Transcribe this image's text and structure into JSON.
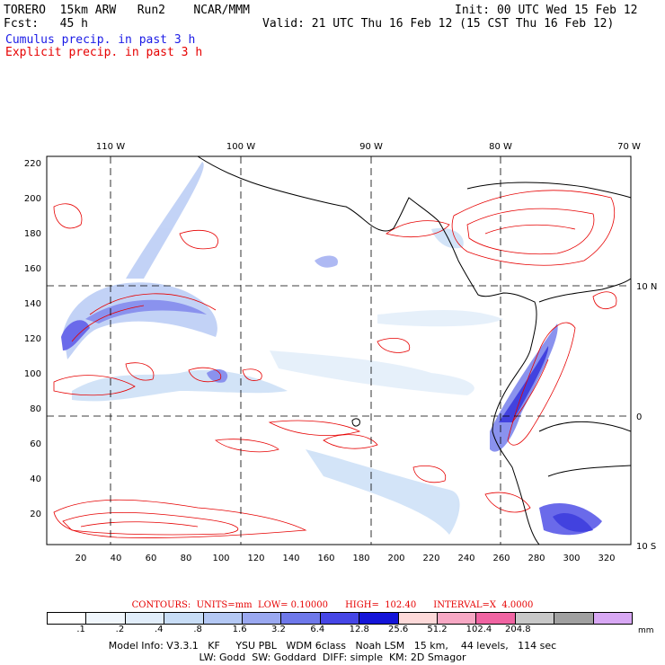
{
  "header": {
    "model": "TORERO  15km ARW   Run2    NCAR/MMM",
    "init": "Init: 00 UTC Wed 15 Feb 12",
    "fcst": "Fcst:   45 h",
    "valid": "Valid: 21 UTC Thu 16 Feb 12 (15 CST Thu 16 Feb 12)",
    "field1": "Cumulus precip. in past 3 h",
    "field2": "Explicit precip. in past 3 h"
  },
  "map": {
    "lon_labels": [
      "110 W",
      "100 W",
      "90 W",
      "80 W",
      "70 W"
    ],
    "lat_labels": [
      "10 N",
      "0",
      "10 S"
    ],
    "y_ticks": [
      "220",
      "200",
      "180",
      "160",
      "140",
      "120",
      "100",
      "80",
      "60",
      "40",
      "20"
    ],
    "x_ticks": [
      "20",
      "40",
      "60",
      "80",
      "100",
      "120",
      "140",
      "160",
      "180",
      "200",
      "220",
      "240",
      "260",
      "280",
      "300",
      "320"
    ]
  },
  "contours": "CONTOURS:  UNITS=mm  LOW= 0.10000      HIGH=  102.40      INTERVAL=X  4.0000",
  "colorbar": {
    "colors": [
      "#ffffff",
      "#f0f6fc",
      "#e1edfa",
      "#c8ddf6",
      "#b4c8f4",
      "#9aa8f0",
      "#6e78ea",
      "#4646e6",
      "#1414d8",
      "#fdd9d9",
      "#f7a8c4",
      "#f064a2",
      "#c8c8c8",
      "#a0a0a0",
      "#d8a8f4"
    ],
    "labels": [
      ".1",
      ".2",
      ".4",
      ".8",
      "1.6",
      "3.2",
      "6.4",
      "12.8",
      "25.6",
      "51.2",
      "102.4",
      "204.8"
    ],
    "unit": "mm"
  },
  "info_line1": "Model Info: V3.3.1   KF     YSU PBL   WDM 6class   Noah LSM   15 km,    44 levels,   114 sec",
  "info_line2": "LW: Godd  SW: Goddard  DIFF: simple  KM: 2D Smagor"
}
